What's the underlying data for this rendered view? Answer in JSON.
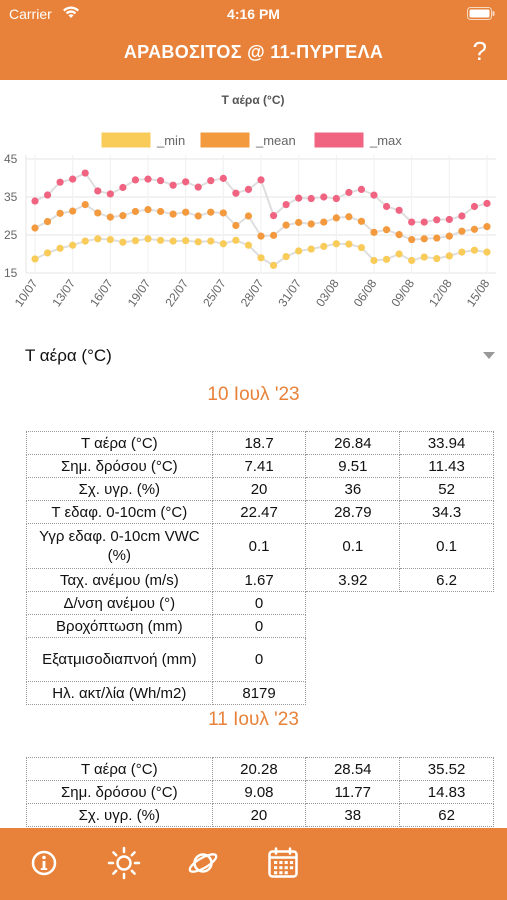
{
  "status_bar": {
    "carrier": "Carrier",
    "time": "4:16 PM"
  },
  "header": {
    "title": "ΑΡΑΒΟΣΙΤΟΣ @ 11-ΠΥΡΓΕΛΑ",
    "help_label": "?"
  },
  "chart_data": {
    "type": "line",
    "title": "T αέρα (°C)",
    "legend_position": "top",
    "grid": true,
    "ylim": [
      15,
      45
    ],
    "yticks": [
      15,
      25,
      35,
      45
    ],
    "xticks": [
      "10/07",
      "13/07",
      "16/07",
      "19/07",
      "22/07",
      "25/07",
      "28/07",
      "31/07",
      "03/08",
      "06/08",
      "09/08",
      "12/08",
      "15/08"
    ],
    "x": [
      "10/07",
      "11/07",
      "12/07",
      "13/07",
      "14/07",
      "15/07",
      "16/07",
      "17/07",
      "18/07",
      "19/07",
      "20/07",
      "21/07",
      "22/07",
      "23/07",
      "24/07",
      "25/07",
      "26/07",
      "27/07",
      "28/07",
      "29/07",
      "30/07",
      "31/07",
      "01/08",
      "02/08",
      "03/08",
      "04/08",
      "05/08",
      "06/08",
      "07/08",
      "08/08",
      "09/08",
      "10/08",
      "11/08",
      "12/08",
      "13/08",
      "14/08",
      "15/08"
    ],
    "series": [
      {
        "name": "_min",
        "color": "#f9cc5a",
        "values": [
          18.7,
          20.28,
          21.5,
          22.3,
          23.4,
          24.0,
          23.8,
          23.1,
          23.5,
          24.0,
          23.6,
          23.4,
          23.5,
          23.2,
          23.4,
          22.7,
          23.6,
          22.3,
          19.0,
          17.0,
          19.3,
          20.8,
          21.3,
          22.0,
          22.7,
          22.6,
          21.7,
          18.3,
          18.6,
          20.0,
          18.3,
          19.2,
          18.8,
          19.5,
          20.5,
          21.0,
          20.5
        ]
      },
      {
        "name": "_mean",
        "color": "#f39a3f",
        "values": [
          26.84,
          28.54,
          30.7,
          31.3,
          33.0,
          30.8,
          29.7,
          30.1,
          31.2,
          31.7,
          31.2,
          30.5,
          31.0,
          30.0,
          31.0,
          30.8,
          27.5,
          30.0,
          24.7,
          24.9,
          27.6,
          28.3,
          27.9,
          28.4,
          29.5,
          29.8,
          28.6,
          25.7,
          26.4,
          25.1,
          23.8,
          24.0,
          24.2,
          24.7,
          26.0,
          26.5,
          27.2
        ]
      },
      {
        "name": "_max",
        "color": "#f06482",
        "values": [
          33.94,
          35.52,
          38.9,
          39.7,
          41.3,
          36.6,
          35.8,
          37.5,
          39.5,
          39.7,
          39.3,
          38.1,
          39.0,
          37.6,
          39.3,
          39.9,
          36.0,
          37.0,
          39.5,
          30.1,
          33.0,
          34.7,
          34.6,
          35.0,
          34.6,
          36.2,
          37.0,
          35.5,
          32.5,
          31.5,
          28.4,
          28.4,
          29.0,
          29.1,
          30.0,
          32.5,
          33.3
        ]
      }
    ]
  },
  "selector": {
    "label": "T αέρα (°C)"
  },
  "days": [
    {
      "date": "10 Ιουλ '23",
      "rows": [
        {
          "label": "T αέρα (°C)",
          "values": [
            "18.7",
            "26.84",
            "33.94"
          ]
        },
        {
          "label": "Σημ. δρόσου (°C)",
          "values": [
            "7.41",
            "9.51",
            "11.43"
          ]
        },
        {
          "label": "Σχ. υγρ. (%)",
          "values": [
            "20",
            "36",
            "52"
          ]
        },
        {
          "label": "T εδαφ. 0-10cm (°C)",
          "values": [
            "22.47",
            "28.79",
            "34.3"
          ]
        },
        {
          "label": "Υγρ εδαφ. 0-10cm VWC (%)",
          "values": [
            "0.1",
            "0.1",
            "0.1"
          ]
        },
        {
          "label": "Ταχ. ανέμου (m/s)",
          "values": [
            "1.67",
            "3.92",
            "6.2"
          ]
        },
        {
          "label": "Δ/νση ανέμου (°)",
          "values": [
            "0"
          ]
        },
        {
          "label": "Βροχόπτωση (mm)",
          "values": [
            "0"
          ]
        },
        {
          "label": "Εξατμισοδιαπνοή (mm)",
          "values": [
            "0"
          ]
        },
        {
          "label": "Ηλ. ακτ/λία (Wh/m2)",
          "values": [
            "8179"
          ]
        }
      ]
    },
    {
      "date": "11 Ιουλ '23",
      "rows": [
        {
          "label": "T αέρα (°C)",
          "values": [
            "20.28",
            "28.54",
            "35.52"
          ]
        },
        {
          "label": "Σημ. δρόσου (°C)",
          "values": [
            "9.08",
            "11.77",
            "14.83"
          ]
        },
        {
          "label": "Σχ. υγρ. (%)",
          "values": [
            "20",
            "38",
            "62"
          ]
        }
      ]
    }
  ],
  "tabbar": {
    "tabs": [
      {
        "icon": "info-icon"
      },
      {
        "icon": "sun-icon"
      },
      {
        "icon": "planet-icon"
      },
      {
        "icon": "calendar-icon"
      }
    ]
  },
  "colors": {
    "accent": "#e8823a",
    "date_text": "#e8823a"
  }
}
